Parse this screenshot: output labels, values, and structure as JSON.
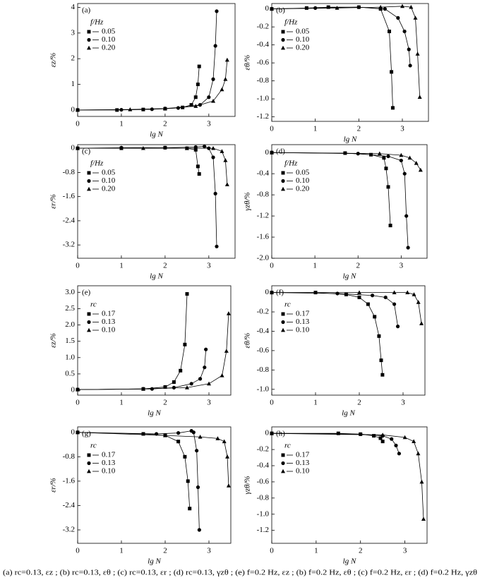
{
  "caption": "(a) rc=0.13, εz ; (b) rc=0.13, εθ ; (c) rc=0.13, εr ; (d) rc=0.13, γzθ ; (e) f=0.2 Hz, εz ; (b) f=0.2 Hz, εθ ; (c) f=0.2 Hz, εr ; (d) f=0.2 Hz, γzθ",
  "chart_data": [
    {
      "type": "line",
      "title": "(a)",
      "x_label": "lg N",
      "y_label": "εz/%",
      "legend_title": "f/Hz",
      "xlim": [
        0,
        3.6
      ],
      "xticks": [
        0,
        1,
        2,
        3
      ],
      "ylim": [
        -0.25,
        4.15
      ],
      "yticks": [
        0,
        1,
        2,
        3,
        4
      ],
      "series": [
        {
          "name": "0.05",
          "color": "#000000",
          "marker": "square",
          "x": [
            0,
            0.9,
            1.5,
            2.0,
            2.4,
            2.6,
            2.7,
            2.75,
            2.78
          ],
          "values": [
            0,
            0,
            0.02,
            0.05,
            0.1,
            0.2,
            0.5,
            1.0,
            1.7
          ]
        },
        {
          "name": "0.10",
          "color": "#000000",
          "marker": "circle",
          "x": [
            0,
            1.0,
            1.7,
            2.3,
            2.8,
            3.0,
            3.1,
            3.15,
            3.18
          ],
          "values": [
            0,
            0.01,
            0.03,
            0.08,
            0.2,
            0.5,
            1.2,
            2.5,
            3.85
          ]
        },
        {
          "name": "0.20",
          "color": "#000000",
          "marker": "triangle",
          "x": [
            0,
            1.2,
            2.0,
            2.7,
            3.1,
            3.3,
            3.38,
            3.42
          ],
          "values": [
            0,
            0.02,
            0.06,
            0.15,
            0.35,
            0.8,
            1.2,
            1.95
          ]
        }
      ]
    },
    {
      "type": "line",
      "title": "(b)",
      "x_label": "lg N",
      "y_label": "εθ/%",
      "legend_title": "f/Hz",
      "xlim": [
        0,
        3.6
      ],
      "xticks": [
        0,
        1,
        2,
        3
      ],
      "ylim": [
        -1.25,
        0.06
      ],
      "yticks": [
        0,
        -0.2,
        -0.4,
        -0.6,
        -0.8,
        {
          "value": -1,
          "label": "-1.0"
        },
        -1.2
      ],
      "series": [
        {
          "name": "0.05",
          "color": "#000000",
          "marker": "square",
          "x": [
            0,
            0.8,
            1.3,
            2.0,
            2.5,
            2.7,
            2.75,
            2.78
          ],
          "values": [
            0,
            0.01,
            0.02,
            0.02,
            0,
            -0.25,
            -0.7,
            -1.1
          ]
        },
        {
          "name": "0.10",
          "color": "#000000",
          "marker": "circle",
          "x": [
            0,
            1.0,
            2.0,
            2.6,
            2.9,
            3.05,
            3.15,
            3.18
          ],
          "values": [
            0,
            0.01,
            0.02,
            0,
            -0.1,
            -0.25,
            -0.45,
            -0.63
          ]
        },
        {
          "name": "0.20",
          "color": "#000000",
          "marker": "triangle",
          "x": [
            0,
            1.5,
            2.5,
            3.0,
            3.2,
            3.3,
            3.35,
            3.4
          ],
          "values": [
            0,
            0.01,
            0.02,
            0.03,
            0.02,
            -0.1,
            -0.5,
            -0.98
          ]
        }
      ]
    },
    {
      "type": "line",
      "title": "(c)",
      "x_label": "lg N",
      "y_label": "εr/%",
      "legend_title": "f/Hz",
      "xlim": [
        0,
        3.6
      ],
      "xticks": [
        0,
        1,
        2,
        3
      ],
      "ylim": [
        -3.64,
        0.12
      ],
      "yticks": [
        0,
        -0.8,
        -1.6,
        -2.4,
        -3.2
      ],
      "series": [
        {
          "name": "0.05",
          "color": "#000000",
          "marker": "square",
          "x": [
            0,
            1,
            2,
            2.5,
            2.7,
            2.75,
            2.78
          ],
          "values": [
            0,
            0,
            0.02,
            0,
            -0.05,
            -0.6,
            -0.85
          ]
        },
        {
          "name": "0.10",
          "color": "#000000",
          "marker": "circle",
          "x": [
            0,
            1,
            2,
            2.7,
            2.9,
            3.0,
            3.1,
            3.15,
            3.18
          ],
          "values": [
            0,
            0.02,
            0.02,
            0.04,
            0.06,
            0,
            -0.3,
            -1.5,
            -3.25
          ]
        },
        {
          "name": "0.20",
          "color": "#000000",
          "marker": "triangle",
          "x": [
            0,
            1.5,
            2.5,
            3.1,
            3.3,
            3.38,
            3.42
          ],
          "values": [
            0,
            0,
            0,
            0,
            -0.1,
            -0.4,
            -1.2
          ]
        }
      ]
    },
    {
      "type": "line",
      "title": "(d)",
      "x_label": "lg N",
      "y_label": "γzθ/%",
      "legend_title": "f/Hz",
      "xlim": [
        0,
        3.6
      ],
      "xticks": [
        0,
        1,
        2,
        3
      ],
      "ylim": [
        -2.0,
        0.15
      ],
      "yticks": [
        0,
        -0.4,
        -0.8,
        -1.2,
        -1.6,
        {
          "value": -2,
          "label": "-2.0"
        }
      ],
      "series": [
        {
          "name": "0.05",
          "color": "#000000",
          "marker": "square",
          "x": [
            0,
            1.7,
            2.3,
            2.6,
            2.65,
            2.7,
            2.75
          ],
          "values": [
            0,
            -0.01,
            -0.04,
            -0.1,
            -0.3,
            -0.65,
            -1.38
          ]
        },
        {
          "name": "0.10",
          "color": "#000000",
          "marker": "circle",
          "x": [
            0,
            2.0,
            2.7,
            3.0,
            3.08,
            3.12,
            3.16
          ],
          "values": [
            0,
            -0.02,
            -0.07,
            -0.15,
            -0.4,
            -1.2,
            -1.8
          ]
        },
        {
          "name": "0.20",
          "color": "#000000",
          "marker": "triangle",
          "x": [
            0,
            2.5,
            3.0,
            3.2,
            3.35,
            3.45
          ],
          "values": [
            0,
            -0.02,
            -0.05,
            -0.1,
            -0.2,
            -0.33
          ]
        }
      ]
    },
    {
      "type": "line",
      "title": "(e)",
      "x_label": "lg N",
      "y_label": "εz/%",
      "legend_title": "rc",
      "xlim": [
        0,
        3.5
      ],
      "xticks": [
        0,
        1,
        2,
        3
      ],
      "ylim": [
        -0.15,
        3.2
      ],
      "yticks": [
        0,
        0.5,
        {
          "value": 1,
          "label": "1.0"
        },
        1.5,
        {
          "value": 2,
          "label": "2.0"
        },
        2.5,
        {
          "value": 3,
          "label": "3.0"
        }
      ],
      "series": [
        {
          "name": "0.17",
          "color": "#000000",
          "marker": "square",
          "x": [
            0,
            1.5,
            2.0,
            2.2,
            2.35,
            2.45,
            2.5
          ],
          "values": [
            0.02,
            0.04,
            0.1,
            0.25,
            0.6,
            1.4,
            2.95
          ]
        },
        {
          "name": "0.13",
          "color": "#000000",
          "marker": "circle",
          "x": [
            0,
            1.7,
            2.2,
            2.6,
            2.8,
            2.9,
            2.93
          ],
          "values": [
            0.02,
            0.04,
            0.08,
            0.2,
            0.35,
            0.7,
            1.25
          ]
        },
        {
          "name": "0.10",
          "color": "#000000",
          "marker": "triangle",
          "x": [
            0,
            1.5,
            2.5,
            3.0,
            3.3,
            3.4,
            3.45
          ],
          "values": [
            0.02,
            0.04,
            0.08,
            0.2,
            0.45,
            1.2,
            2.35
          ]
        }
      ]
    },
    {
      "type": "line",
      "title": "(f)",
      "x_label": "lg N",
      "y_label": "εθ/%",
      "legend_title": "rc",
      "xlim": [
        0,
        3.5
      ],
      "xticks": [
        0,
        1,
        2,
        3
      ],
      "ylim": [
        -1.06,
        0.07
      ],
      "yticks": [
        0,
        -0.2,
        -0.4,
        -0.6,
        -0.8,
        {
          "value": -1,
          "label": "-1.0"
        }
      ],
      "series": [
        {
          "name": "0.17",
          "color": "#000000",
          "marker": "square",
          "x": [
            0,
            1.0,
            1.7,
            2.0,
            2.2,
            2.35,
            2.45,
            2.5,
            2.53
          ],
          "values": [
            0,
            0,
            -0.02,
            -0.05,
            -0.12,
            -0.25,
            -0.45,
            -0.7,
            -0.85
          ]
        },
        {
          "name": "0.13",
          "color": "#000000",
          "marker": "circle",
          "x": [
            0,
            1.5,
            2.3,
            2.6,
            2.8,
            2.88
          ],
          "values": [
            0,
            -0.01,
            -0.03,
            -0.05,
            -0.12,
            -0.35
          ]
        },
        {
          "name": "0.10",
          "color": "#000000",
          "marker": "triangle",
          "x": [
            0,
            2.0,
            2.8,
            3.1,
            3.25,
            3.35,
            3.42
          ],
          "values": [
            0,
            0,
            0,
            0,
            -0.02,
            -0.1,
            -0.32
          ]
        }
      ]
    },
    {
      "type": "line",
      "title": "(g)",
      "x_label": "lg N",
      "y_label": "εr/%",
      "legend_title": "rc",
      "xlim": [
        0,
        3.5
      ],
      "xticks": [
        0,
        1,
        2,
        3
      ],
      "ylim": [
        -3.64,
        0.18
      ],
      "yticks": [
        0,
        -0.8,
        -1.6,
        -2.4,
        -3.2
      ],
      "series": [
        {
          "name": "0.17",
          "color": "#000000",
          "marker": "square",
          "x": [
            0,
            1.5,
            2.0,
            2.3,
            2.45,
            2.52,
            2.56
          ],
          "values": [
            0,
            -0.05,
            -0.1,
            -0.3,
            -0.8,
            -1.6,
            -2.5
          ]
        },
        {
          "name": "0.13",
          "color": "#000000",
          "marker": "circle",
          "x": [
            0,
            1.8,
            2.3,
            2.6,
            2.65,
            2.72,
            2.75,
            2.78
          ],
          "values": [
            0,
            -0.05,
            -0.02,
            0.05,
            0,
            -0.6,
            -1.8,
            -3.2
          ]
        },
        {
          "name": "0.10",
          "color": "#000000",
          "marker": "triangle",
          "x": [
            0,
            2.0,
            2.8,
            3.2,
            3.35,
            3.42,
            3.45
          ],
          "values": [
            0,
            -0.1,
            -0.15,
            -0.2,
            -0.3,
            -0.8,
            -1.75
          ]
        }
      ]
    },
    {
      "type": "line",
      "title": "(h)",
      "x_label": "lg N",
      "y_label": "γzθ/%",
      "legend_title": "rc",
      "xlim": [
        0,
        3.5
      ],
      "xticks": [
        0,
        1,
        2,
        3
      ],
      "ylim": [
        -1.36,
        0.08
      ],
      "yticks": [
        0,
        -0.2,
        -0.4,
        -0.6,
        -0.8,
        {
          "value": -1,
          "label": "-1.0"
        },
        -1.2
      ],
      "series": [
        {
          "name": "0.17",
          "color": "#000000",
          "marker": "square",
          "x": [
            0,
            1.5,
            2.0,
            2.3,
            2.45,
            2.5
          ],
          "values": [
            0,
            0,
            -0.01,
            -0.03,
            -0.06,
            -0.1
          ]
        },
        {
          "name": "0.13",
          "color": "#000000",
          "marker": "circle",
          "x": [
            0,
            2.0,
            2.5,
            2.7,
            2.8,
            2.87
          ],
          "values": [
            0,
            -0.01,
            -0.03,
            -0.07,
            -0.15,
            -0.25
          ]
        },
        {
          "name": "0.10",
          "color": "#000000",
          "marker": "triangle",
          "x": [
            0,
            2.5,
            3.0,
            3.2,
            3.3,
            3.38,
            3.42
          ],
          "values": [
            0,
            -0.02,
            -0.05,
            -0.1,
            -0.25,
            -0.6,
            -1.06
          ]
        }
      ]
    }
  ]
}
